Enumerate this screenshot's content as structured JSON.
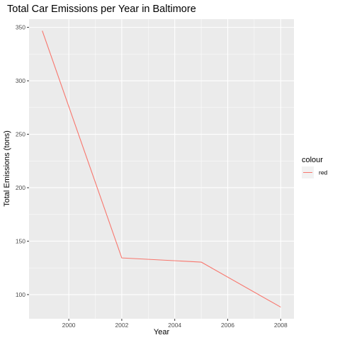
{
  "chart_data": {
    "type": "line",
    "title": "Total Car Emissions per Year in Baltimore",
    "xlabel": "Year",
    "ylabel": "Total Emissions (tons)",
    "x": [
      1999,
      2002,
      2005,
      2008
    ],
    "series": [
      {
        "name": "red",
        "values": [
          346.8,
          134.3,
          130.4,
          88.3
        ],
        "color": "#F8766D"
      }
    ],
    "xlim": [
      1998.5,
      2008.5
    ],
    "ylim": [
      77.4,
      357.7
    ],
    "x_ticks": [
      2000,
      2002,
      2004,
      2006,
      2008
    ],
    "x_tick_labels": [
      "2000",
      "2002",
      "2004",
      "2006",
      "2008"
    ],
    "y_ticks": [
      100,
      150,
      200,
      250,
      300,
      350
    ],
    "y_tick_labels": [
      "100",
      "150",
      "200",
      "250",
      "300",
      "350"
    ],
    "legend": {
      "title": "colour",
      "position": "right",
      "entries": [
        "red"
      ]
    },
    "grid": true,
    "panel_background": "#EBEBEB",
    "grid_color": "#FFFFFF"
  }
}
